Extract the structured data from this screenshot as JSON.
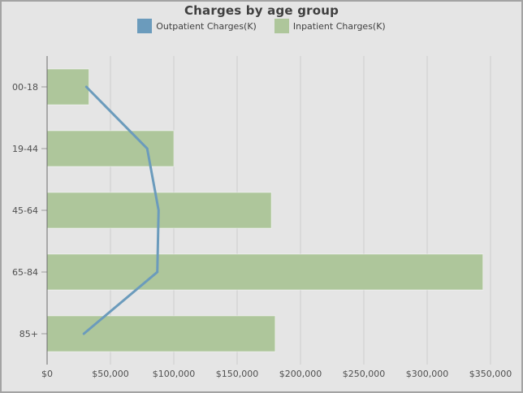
{
  "theme": {
    "background": "#e5e5e5",
    "border_color": "#a3a3a3",
    "title_color": "#3f3f3f",
    "legend_text_color": "#3f3f3f",
    "axis_label_color": "#4f4f4f",
    "grid_color": "#cdcdcd",
    "axis_line_color": "#6a6a6a",
    "tick_color": "#9a9a9a"
  },
  "chart_data": {
    "type": "bar",
    "orientation": "horizontal",
    "title": "Charges by age group",
    "categories": [
      "00-18",
      "19-44",
      "45-64",
      "65-84",
      "85+"
    ],
    "series": [
      {
        "name": "Outpatient Charges(K)",
        "render_as": "line",
        "color": "#6b9bbc",
        "values": [
          31000,
          79000,
          88000,
          87000,
          29000
        ]
      },
      {
        "name": "Inpatient Charges(K)",
        "render_as": "bar",
        "color": "#aec69b",
        "values": [
          33000,
          100000,
          177000,
          344000,
          180000
        ]
      }
    ],
    "x_axis": {
      "min": 0,
      "max": 350000,
      "tick_interval": 50000,
      "tick_labels": [
        "$0",
        "$50,000",
        "$100,000",
        "$150,000",
        "$200,000",
        "$250,000",
        "$300,000",
        "$350,000"
      ],
      "format": "currency"
    },
    "y_axis": {
      "label": "",
      "categories_top_to_bottom": true
    },
    "legend_position": "top",
    "grid": "vertical-only",
    "xlabel": "",
    "ylabel": ""
  }
}
